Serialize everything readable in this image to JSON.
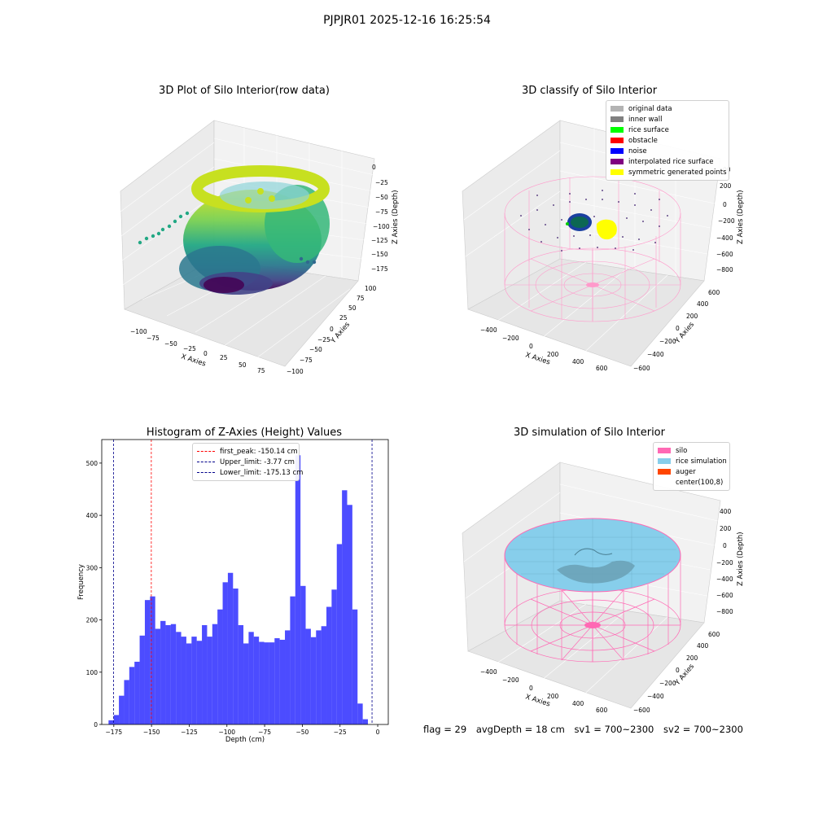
{
  "suptitle": "PJPJR01 2025-12-16 16:25:54",
  "footer": {
    "flag": "flag = 29",
    "avg_depth": "avgDepth = 18 cm",
    "sv1": "sv1 = 700~2300",
    "sv2": "sv2 = 700~2300"
  },
  "plots": {
    "raw": {
      "title": "3D Plot of Silo Interior(row data)",
      "xlabel": "X Axies",
      "ylabel": "Y Axies",
      "zlabel": "Z Axies (Depth)",
      "xticks": [
        "−100",
        "−75",
        "−50",
        "−25",
        "0",
        "25",
        "50",
        "75"
      ],
      "yticks": [
        "−100",
        "−75",
        "−50",
        "−25",
        "0",
        "25",
        "50",
        "75",
        "100"
      ],
      "zticks": [
        "0",
        "−25",
        "−50",
        "−75",
        "−100",
        "−125",
        "−150",
        "−175"
      ],
      "colormap": "viridis"
    },
    "classify": {
      "title": "3D classify of Silo Interior",
      "xlabel": "X Axies",
      "ylabel": "Y Axies",
      "zlabel": "Z Axies (Depth)",
      "xticks": [
        "−400",
        "−200",
        "0",
        "200",
        "400",
        "600"
      ],
      "yticks": [
        "−600",
        "−400",
        "−200",
        "0",
        "200",
        "400",
        "600"
      ],
      "zticks": [
        "200",
        "0",
        "−200",
        "−400",
        "−600",
        "−800"
      ],
      "zticks_top": "00",
      "legend": [
        {
          "label": "original data",
          "color": "#b3b3b3"
        },
        {
          "label": "inner wall",
          "color": "#808080"
        },
        {
          "label": "rice surface",
          "color": "#00ff00"
        },
        {
          "label": "obstacle",
          "color": "#ff0000"
        },
        {
          "label": "noise",
          "color": "#0000ff"
        },
        {
          "label": "interpolated rice surface",
          "color": "#800080"
        },
        {
          "label": "symmetric generated points",
          "color": "#ffff00"
        }
      ]
    },
    "simulation": {
      "title": "3D simulation of Silo Interior",
      "xlabel": "X Axies",
      "ylabel": "Y Axies",
      "zlabel": "Z Axies (Depth)",
      "xticks": [
        "−400",
        "−200",
        "0",
        "200",
        "400",
        "600"
      ],
      "yticks": [
        "−600",
        "−400",
        "−200",
        "0",
        "200",
        "400",
        "600"
      ],
      "zticks": [
        "400",
        "200",
        "0",
        "−200",
        "−400",
        "−600",
        "−800"
      ],
      "legend": [
        {
          "label": "silo",
          "color": "#ff69b4"
        },
        {
          "label": "rice simulation",
          "color": "#87ceeb"
        },
        {
          "label": "auger",
          "color": "#ff4500"
        },
        {
          "label": "center(100,8)",
          "color": "#ffffff"
        }
      ]
    }
  },
  "chart_data": {
    "type": "bar",
    "title": "Histogram of Z-Axies (Height) Values",
    "xlabel": "Depth (cm)",
    "ylabel": "Frequency",
    "bar_color": "#0000ff",
    "xlim": [
      -183,
      7
    ],
    "ylim": [
      0,
      545
    ],
    "xticks": [
      -175,
      -150,
      -125,
      -100,
      -75,
      -50,
      -25,
      0
    ],
    "xtick_labels": [
      "−175",
      "−150",
      "−125",
      "−100",
      "−75",
      "−50",
      "−25",
      "0"
    ],
    "yticks": [
      0,
      100,
      200,
      300,
      400,
      500
    ],
    "bin_start": -178.5,
    "bin_width": 3.44,
    "values": [
      8,
      18,
      55,
      85,
      110,
      120,
      170,
      238,
      245,
      183,
      198,
      190,
      192,
      177,
      168,
      155,
      168,
      160,
      190,
      168,
      192,
      220,
      272,
      290,
      260,
      190,
      155,
      177,
      168,
      158,
      157,
      157,
      165,
      162,
      180,
      245,
      515,
      265,
      183,
      167,
      180,
      188,
      225,
      258,
      345,
      448,
      420,
      220,
      40,
      10
    ],
    "lines": [
      {
        "label": "first_peak: -150.14 cm",
        "x": -150.14,
        "color": "#ff0000"
      },
      {
        "label": "Upper_limit: -3.77 cm",
        "x": -3.77,
        "color": "#00008b"
      },
      {
        "label": "Lower_limit: -175.13 cm",
        "x": -175.13,
        "color": "#00008b"
      }
    ]
  }
}
